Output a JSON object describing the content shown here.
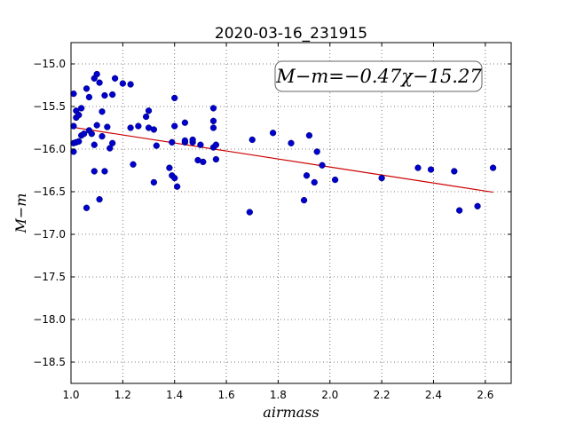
{
  "chart_data": {
    "type": "scatter",
    "title": "2020-03-16_231915",
    "xlabel": "airmass",
    "ylabel": "M−m",
    "xlim": [
      1.0,
      2.7
    ],
    "ylim": [
      -18.75,
      -14.75
    ],
    "y_inverted": true,
    "grid": true,
    "x_ticks": [
      1.0,
      1.2,
      1.4,
      1.6,
      1.8,
      2.0,
      2.2,
      2.4,
      2.6
    ],
    "x_tick_labels": [
      "1.0",
      "1.2",
      "1.4",
      "1.6",
      "1.8",
      "2.0",
      "2.2",
      "2.4",
      "2.6"
    ],
    "y_ticks": [
      -15.0,
      -15.5,
      -16.0,
      -16.5,
      -17.0,
      -17.5,
      -18.0,
      -18.5
    ],
    "y_tick_labels": [
      "−15.0",
      "−15.5",
      "−16.0",
      "−16.5",
      "−17.0",
      "−17.5",
      "−18.0",
      "−18.5"
    ],
    "annotation": "M−m=−0.47χ−15.27",
    "point_color": "#0000cc",
    "fit_color": "#cc0000",
    "fit": {
      "slope": -0.47,
      "intercept": -15.27,
      "x_range": [
        1.0,
        2.63
      ]
    },
    "points": [
      {
        "x": 1.01,
        "y": -15.35
      },
      {
        "x": 1.01,
        "y": -15.73
      },
      {
        "x": 1.01,
        "y": -15.93
      },
      {
        "x": 1.01,
        "y": -16.03
      },
      {
        "x": 1.02,
        "y": -15.55
      },
      {
        "x": 1.02,
        "y": -15.63
      },
      {
        "x": 1.02,
        "y": -15.92
      },
      {
        "x": 1.03,
        "y": -15.6
      },
      {
        "x": 1.03,
        "y": -15.91
      },
      {
        "x": 1.04,
        "y": -15.52
      },
      {
        "x": 1.04,
        "y": -15.84
      },
      {
        "x": 1.05,
        "y": -15.82
      },
      {
        "x": 1.06,
        "y": -15.29
      },
      {
        "x": 1.06,
        "y": -16.69
      },
      {
        "x": 1.07,
        "y": -15.39
      },
      {
        "x": 1.07,
        "y": -15.78
      },
      {
        "x": 1.08,
        "y": -15.82
      },
      {
        "x": 1.09,
        "y": -15.17
      },
      {
        "x": 1.09,
        "y": -15.95
      },
      {
        "x": 1.09,
        "y": -16.26
      },
      {
        "x": 1.1,
        "y": -15.12
      },
      {
        "x": 1.1,
        "y": -15.72
      },
      {
        "x": 1.11,
        "y": -15.22
      },
      {
        "x": 1.11,
        "y": -16.59
      },
      {
        "x": 1.12,
        "y": -15.56
      },
      {
        "x": 1.12,
        "y": -15.85
      },
      {
        "x": 1.13,
        "y": -15.37
      },
      {
        "x": 1.13,
        "y": -16.26
      },
      {
        "x": 1.14,
        "y": -15.74
      },
      {
        "x": 1.15,
        "y": -15.99
      },
      {
        "x": 1.16,
        "y": -15.93
      },
      {
        "x": 1.16,
        "y": -15.36
      },
      {
        "x": 1.17,
        "y": -15.17
      },
      {
        "x": 1.2,
        "y": -15.23
      },
      {
        "x": 1.23,
        "y": -15.24
      },
      {
        "x": 1.23,
        "y": -15.75
      },
      {
        "x": 1.24,
        "y": -16.18
      },
      {
        "x": 1.26,
        "y": -15.73
      },
      {
        "x": 1.29,
        "y": -15.62
      },
      {
        "x": 1.3,
        "y": -15.55
      },
      {
        "x": 1.3,
        "y": -15.75
      },
      {
        "x": 1.32,
        "y": -15.77
      },
      {
        "x": 1.32,
        "y": -16.39
      },
      {
        "x": 1.33,
        "y": -15.96
      },
      {
        "x": 1.38,
        "y": -16.22
      },
      {
        "x": 1.39,
        "y": -15.92
      },
      {
        "x": 1.39,
        "y": -16.31
      },
      {
        "x": 1.4,
        "y": -15.4
      },
      {
        "x": 1.4,
        "y": -15.73
      },
      {
        "x": 1.4,
        "y": -16.34
      },
      {
        "x": 1.41,
        "y": -16.44
      },
      {
        "x": 1.44,
        "y": -15.69
      },
      {
        "x": 1.44,
        "y": -15.92
      },
      {
        "x": 1.44,
        "y": -15.9
      },
      {
        "x": 1.47,
        "y": -15.92
      },
      {
        "x": 1.47,
        "y": -15.89
      },
      {
        "x": 1.49,
        "y": -16.13
      },
      {
        "x": 1.5,
        "y": -15.95
      },
      {
        "x": 1.51,
        "y": -16.15
      },
      {
        "x": 1.55,
        "y": -15.52
      },
      {
        "x": 1.55,
        "y": -15.67
      },
      {
        "x": 1.55,
        "y": -15.75
      },
      {
        "x": 1.55,
        "y": -15.98
      },
      {
        "x": 1.56,
        "y": -15.95
      },
      {
        "x": 1.56,
        "y": -16.12
      },
      {
        "x": 1.69,
        "y": -16.74
      },
      {
        "x": 1.7,
        "y": -15.89
      },
      {
        "x": 1.78,
        "y": -15.81
      },
      {
        "x": 1.85,
        "y": -15.93
      },
      {
        "x": 1.9,
        "y": -16.6
      },
      {
        "x": 1.91,
        "y": -16.31
      },
      {
        "x": 1.92,
        "y": -15.84
      },
      {
        "x": 1.94,
        "y": -16.39
      },
      {
        "x": 1.95,
        "y": -16.03
      },
      {
        "x": 1.97,
        "y": -16.19
      },
      {
        "x": 2.02,
        "y": -16.36
      },
      {
        "x": 2.2,
        "y": -16.34
      },
      {
        "x": 2.34,
        "y": -16.22
      },
      {
        "x": 2.39,
        "y": -16.24
      },
      {
        "x": 2.48,
        "y": -16.26
      },
      {
        "x": 2.5,
        "y": -16.72
      },
      {
        "x": 2.57,
        "y": -16.67
      },
      {
        "x": 2.63,
        "y": -16.22
      }
    ]
  }
}
